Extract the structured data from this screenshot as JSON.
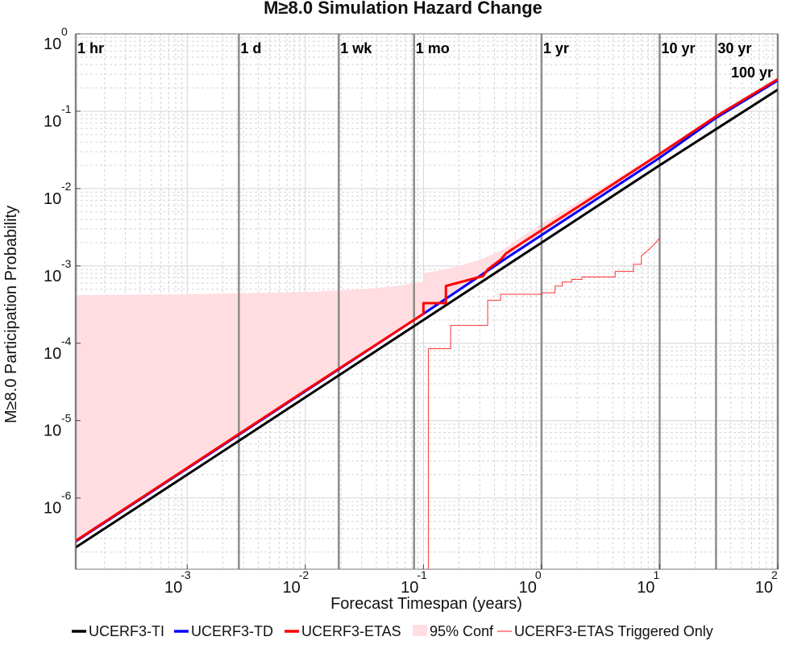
{
  "chart_data": {
    "type": "line",
    "title": "M≥8.0 Simulation Hazard Change",
    "xlabel": "Forecast Timespan (years)",
    "ylabel": "M≥8.0 Participation Probability",
    "xscale": "log",
    "yscale": "log",
    "xlim": [
      0.000114,
      100
    ],
    "ylim": [
      1.2e-07,
      1
    ],
    "grid": true,
    "legend_position": "bottom",
    "x_ticks": [
      {
        "value": 0.001,
        "base": "10",
        "exp": "-3"
      },
      {
        "value": 0.01,
        "base": "10",
        "exp": "-2"
      },
      {
        "value": 0.1,
        "base": "10",
        "exp": "-1"
      },
      {
        "value": 1,
        "base": "10",
        "exp": "0"
      },
      {
        "value": 10,
        "base": "10",
        "exp": "1"
      },
      {
        "value": 100,
        "base": "10",
        "exp": "2"
      }
    ],
    "y_ticks": [
      {
        "value": 1e-06,
        "base": "10",
        "exp": "-6"
      },
      {
        "value": 1e-05,
        "base": "10",
        "exp": "-5"
      },
      {
        "value": 0.0001,
        "base": "10",
        "exp": "-4"
      },
      {
        "value": 0.001,
        "base": "10",
        "exp": "-3"
      },
      {
        "value": 0.01,
        "base": "10",
        "exp": "-2"
      },
      {
        "value": 0.1,
        "base": "10",
        "exp": "-1"
      },
      {
        "value": 1,
        "base": "10",
        "exp": "0"
      }
    ],
    "time_markers": [
      {
        "label": "1 hr",
        "x": 0.000114
      },
      {
        "label": "1 d",
        "x": 0.00274
      },
      {
        "label": "1 wk",
        "x": 0.0192
      },
      {
        "label": "1 mo",
        "x": 0.0833
      },
      {
        "label": "1 yr",
        "x": 1
      },
      {
        "label": "10 yr",
        "x": 10
      },
      {
        "label": "30 yr",
        "x": 30
      },
      {
        "label": "100 yr",
        "x": 100
      }
    ],
    "series": [
      {
        "name": "UCERF3-TI",
        "color": "#000000",
        "style": "solid",
        "width": 3,
        "points": [
          [
            0.000114,
            2.3e-07
          ],
          [
            0.001,
            2e-06
          ],
          [
            0.01,
            2e-05
          ],
          [
            0.1,
            0.0002
          ],
          [
            1,
            0.002
          ],
          [
            10,
            0.02
          ],
          [
            100,
            0.19
          ]
        ]
      },
      {
        "name": "UCERF3-TD",
        "color": "#0000ff",
        "style": "solid",
        "width": 3,
        "points": [
          [
            0.000114,
            2.75e-07
          ],
          [
            0.001,
            2.4e-06
          ],
          [
            0.01,
            2.4e-05
          ],
          [
            0.1,
            0.00024
          ],
          [
            0.5,
            0.00125
          ],
          [
            1,
            0.0025
          ],
          [
            10,
            0.025
          ],
          [
            30,
            0.082
          ],
          [
            100,
            0.25
          ]
        ]
      },
      {
        "name": "UCERF3-ETAS",
        "color": "#ff0000",
        "style": "solid",
        "width": 3,
        "points": [
          [
            0.000114,
            2.8e-07
          ],
          [
            0.001,
            2.45e-06
          ],
          [
            0.01,
            2.45e-05
          ],
          [
            0.1,
            0.00024
          ],
          [
            0.1,
            0.00033
          ],
          [
            0.155,
            0.00033
          ],
          [
            0.155,
            0.00055
          ],
          [
            0.32,
            0.00074
          ],
          [
            0.35,
            0.0009
          ],
          [
            0.45,
            0.0012
          ],
          [
            0.5,
            0.00145
          ],
          [
            0.55,
            0.0016
          ],
          [
            1,
            0.0029
          ],
          [
            3,
            0.0085
          ],
          [
            10,
            0.028
          ],
          [
            30,
            0.086
          ],
          [
            100,
            0.26
          ]
        ]
      },
      {
        "name": "UCERF3-ETAS Triggered Only",
        "color": "#ff3333",
        "style": "step",
        "width": 1,
        "points": [
          [
            0.11,
            1.2e-07
          ],
          [
            0.11,
            8.5e-05
          ],
          [
            0.17,
            8.5e-05
          ],
          [
            0.17,
            0.00017
          ],
          [
            0.35,
            0.00017
          ],
          [
            0.35,
            0.00036
          ],
          [
            0.45,
            0.00036
          ],
          [
            0.45,
            0.00043
          ],
          [
            1,
            0.00043
          ],
          [
            1,
            0.00045
          ],
          [
            1.3,
            0.00045
          ],
          [
            1.3,
            0.00055
          ],
          [
            1.5,
            0.00055
          ],
          [
            1.5,
            0.00062
          ],
          [
            1.8,
            0.00062
          ],
          [
            1.8,
            0.00067
          ],
          [
            2.2,
            0.00067
          ],
          [
            2.2,
            0.00072
          ],
          [
            4.2,
            0.00072
          ],
          [
            4.2,
            0.00085
          ],
          [
            6,
            0.00085
          ],
          [
            6,
            0.00105
          ],
          [
            7,
            0.00105
          ],
          [
            7,
            0.00135
          ],
          [
            8,
            0.0016
          ],
          [
            9,
            0.0019
          ],
          [
            10,
            0.0023
          ]
        ]
      }
    ],
    "confidence_band": {
      "name": "95% Conf",
      "color": "#ffdde0",
      "x": [
        0.000114,
        0.001,
        0.01,
        0.03,
        0.06,
        0.0833,
        0.1,
        0.1,
        0.15,
        0.2,
        0.3,
        0.4,
        0.5,
        0.6,
        1,
        3,
        10,
        30,
        100
      ],
      "upper": [
        0.00042,
        0.00043,
        0.00046,
        0.0005,
        0.00055,
        0.0006,
        0.00062,
        0.0008,
        0.0009,
        0.001,
        0.0012,
        0.00145,
        0.0017,
        0.0021,
        0.0035,
        0.0095,
        0.03,
        0.088,
        0.26
      ],
      "lower": [
        2.7e-07,
        2.4e-06,
        2.4e-05,
        7.2e-05,
        0.000145,
        0.0002,
        0.00024,
        0.00024,
        0.00036,
        0.00048,
        0.00072,
        0.00096,
        0.0012,
        0.00145,
        0.0024,
        0.0072,
        0.024,
        0.078,
        0.24
      ]
    },
    "legend": [
      {
        "name": "UCERF3-TI",
        "kind": "line",
        "color": "#000000"
      },
      {
        "name": "UCERF3-TD",
        "kind": "line",
        "color": "#0000ff"
      },
      {
        "name": "UCERF3-ETAS",
        "kind": "line",
        "color": "#ff0000"
      },
      {
        "name": "95% Conf",
        "kind": "patch",
        "color": "#ffdde0"
      },
      {
        "name": "UCERF3-ETAS Triggered Only",
        "kind": "thinline",
        "color": "#ff6666"
      }
    ]
  }
}
